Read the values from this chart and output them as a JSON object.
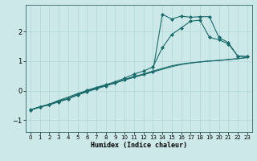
{
  "xlabel": "Humidex (Indice chaleur)",
  "background_color": "#cce8e8",
  "grid_color": "#aad4d4",
  "line_color": "#1a6b6b",
  "xlim": [
    -0.5,
    23.5
  ],
  "ylim": [
    -1.4,
    2.9
  ],
  "xticks": [
    0,
    1,
    2,
    3,
    4,
    5,
    6,
    7,
    8,
    9,
    10,
    11,
    12,
    13,
    14,
    15,
    16,
    17,
    18,
    19,
    20,
    21,
    22,
    23
  ],
  "yticks": [
    -1,
    0,
    1,
    2
  ],
  "series": [
    {
      "x": [
        0,
        1,
        2,
        3,
        4,
        5,
        6,
        7,
        8,
        9,
        10,
        11,
        12,
        13,
        14,
        15,
        16,
        17,
        18,
        19,
        20,
        21,
        22,
        23
      ],
      "y": [
        -0.65,
        -0.55,
        -0.46,
        -0.33,
        -0.22,
        -0.1,
        0.0,
        0.09,
        0.18,
        0.27,
        0.37,
        0.47,
        0.56,
        0.66,
        0.75,
        0.84,
        0.9,
        0.94,
        0.97,
        1.0,
        1.02,
        1.05,
        1.08,
        1.12
      ],
      "marker": false
    },
    {
      "x": [
        0,
        1,
        2,
        3,
        4,
        5,
        6,
        7,
        8,
        9,
        10,
        11,
        12,
        13,
        14,
        15,
        16,
        17,
        18,
        19,
        20,
        21,
        22,
        23
      ],
      "y": [
        -0.65,
        -0.55,
        -0.46,
        -0.35,
        -0.26,
        -0.13,
        -0.02,
        0.08,
        0.17,
        0.26,
        0.36,
        0.45,
        0.54,
        0.63,
        0.72,
        0.81,
        0.88,
        0.93,
        0.97,
        1.0,
        1.02,
        1.05,
        1.08,
        1.12
      ],
      "marker": false
    },
    {
      "x": [
        0,
        1,
        2,
        3,
        4,
        5,
        6,
        7,
        8,
        9,
        10,
        11,
        12,
        13,
        14,
        15,
        16,
        17,
        18,
        19,
        20,
        21,
        22,
        23
      ],
      "y": [
        -0.65,
        -0.55,
        -0.48,
        -0.37,
        -0.28,
        -0.15,
        -0.04,
        0.06,
        0.16,
        0.26,
        0.37,
        0.48,
        0.55,
        0.65,
        2.58,
        2.42,
        2.52,
        2.48,
        2.5,
        2.5,
        1.8,
        1.62,
        1.17,
        1.15
      ],
      "marker": true
    },
    {
      "x": [
        0,
        1,
        2,
        3,
        4,
        5,
        6,
        7,
        8,
        9,
        10,
        11,
        12,
        13,
        14,
        15,
        16,
        17,
        18,
        19,
        20,
        21,
        22,
        23
      ],
      "y": [
        -0.66,
        -0.56,
        -0.48,
        -0.38,
        -0.28,
        -0.13,
        0.01,
        0.11,
        0.2,
        0.3,
        0.42,
        0.56,
        0.66,
        0.8,
        1.45,
        1.9,
        2.12,
        2.35,
        2.38,
        1.8,
        1.72,
        1.58,
        1.17,
        1.15
      ],
      "marker": true
    }
  ]
}
